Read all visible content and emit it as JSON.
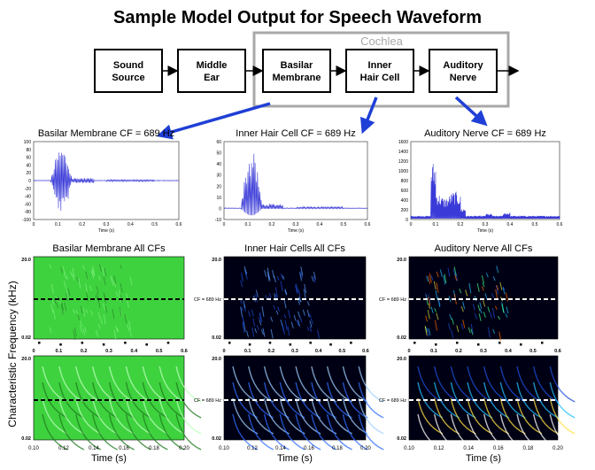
{
  "title": "Sample Model Output for Speech Waveform",
  "cochlea_label": "Cochlea",
  "blocks": [
    {
      "line1": "Sound",
      "line2": "Source"
    },
    {
      "line1": "Middle",
      "line2": "Ear"
    },
    {
      "line1": "Basilar",
      "line2": "Membrane"
    },
    {
      "line1": "Inner",
      "line2": "Hair Cell"
    },
    {
      "line1": "Auditory",
      "line2": "Nerve"
    }
  ],
  "waveforms": [
    {
      "title": "Basilar Membrane CF = 689 Hz",
      "xlabel": "Time (s)",
      "yticks": [
        "100",
        "80",
        "60",
        "40",
        "20",
        "0",
        "-20",
        "-40",
        "-60",
        "-80",
        "-100"
      ],
      "xticks": [
        "0",
        "0.1",
        "0.2",
        "0.3",
        "0.4",
        "0.5",
        "0.6"
      ]
    },
    {
      "title": "Inner Hair Cell CF = 689 Hz",
      "xlabel": "Time (s)",
      "yticks": [
        "60",
        "50",
        "40",
        "30",
        "20",
        "10",
        "0",
        "-10"
      ],
      "xticks": [
        "0",
        "0.1",
        "0.2",
        "0.3",
        "0.4",
        "0.5",
        "0.6"
      ]
    },
    {
      "title": "Auditory Nerve CF = 689 Hz",
      "xlabel": "Time (s)",
      "yticks": [
        "1600",
        "1400",
        "1200",
        "1000",
        "800",
        "600",
        "400",
        "200",
        "0"
      ],
      "xticks": [
        "0",
        "0.1",
        "0.2",
        "0.3",
        "0.4",
        "0.5",
        "0.6"
      ]
    }
  ],
  "spectrograms": [
    {
      "title": "Basilar Membrane  All CFs",
      "color": "#3fd23f"
    },
    {
      "title": "Inner Hair Cells  All CFs",
      "color": "#000014"
    },
    {
      "title": "Auditory Nerve  All CFs",
      "color": "#000014"
    }
  ],
  "cf_marker": "CF = 689 Hz",
  "ylabel": "Characteristic Frequency (kHz)",
  "freq_top": "20.0",
  "freq_bottom": "0.02",
  "zoom_freq_top": "20.0",
  "zoom_freq_bottom": "0.02",
  "top_xticks": [
    "0",
    "0.1",
    "0.2",
    "0.3",
    "0.4",
    "0.5",
    "0.6"
  ],
  "bottom_xticks": [
    "0.10",
    "0.12",
    "0.14",
    "0.16",
    "0.18",
    "0.20"
  ],
  "time_label": "Time (s)",
  "colors": {
    "arrow": "#1f3fd6",
    "wave": "#3a3ad8",
    "cochlea_box": "#a8a8a8"
  }
}
